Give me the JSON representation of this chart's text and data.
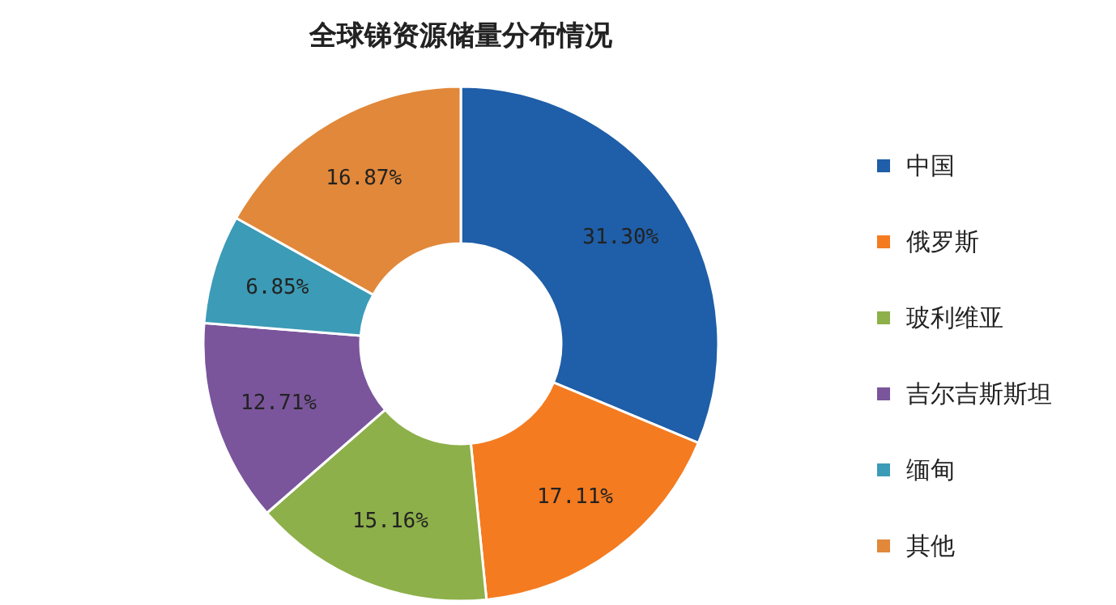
{
  "chart_data": {
    "type": "donut",
    "title": "全球锑资源储量分布情况",
    "categories": [
      "中国",
      "俄罗斯",
      "玻利维亚",
      "吉尔吉斯斯坦",
      "缅甸",
      "其他"
    ],
    "values": [
      31.3,
      17.11,
      15.16,
      12.71,
      6.85,
      16.87
    ],
    "value_labels": [
      "31.30%",
      "17.11%",
      "15.16%",
      "12.71%",
      "6.85%",
      "16.87%"
    ],
    "colors": [
      "#1f5ea8",
      "#f47b20",
      "#8db04a",
      "#7a559b",
      "#3c9bb6",
      "#e1883a"
    ],
    "legend": "right"
  }
}
